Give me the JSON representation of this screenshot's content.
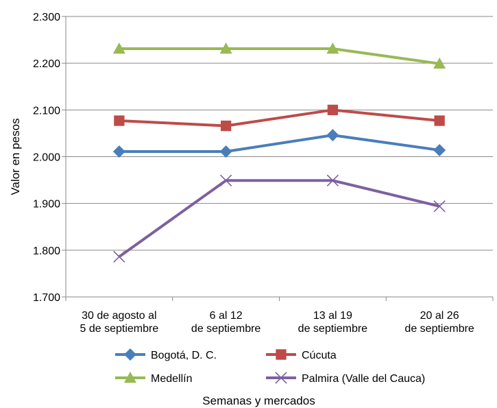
{
  "chart_data": {
    "type": "line",
    "title": "",
    "xlabel": "Semanas y mercados",
    "ylabel": "Valor en pesos",
    "categories": [
      [
        "30 de agosto al",
        "5 de septiembre"
      ],
      [
        "6 al 12",
        "de septiembre"
      ],
      [
        "13 al 19",
        "de septiembre"
      ],
      [
        "20 al 26",
        "de septiembre"
      ]
    ],
    "ylim": [
      1700,
      2300
    ],
    "yticks": [
      1700,
      1800,
      1900,
      2000,
      2100,
      2200,
      2300
    ],
    "ytick_labels": [
      "1.700",
      "1.800",
      "1.900",
      "2.000",
      "2.100",
      "2.200",
      "2.300"
    ],
    "grid": true,
    "legend_position": "bottom",
    "series": [
      {
        "name": "Bogotá, D. C.",
        "values": [
          2011,
          2011,
          2046,
          2014
        ],
        "color": "#4a7ebb",
        "marker": "diamond"
      },
      {
        "name": "Cúcuta",
        "values": [
          2077,
          2066,
          2100,
          2077
        ],
        "color": "#be4b48",
        "marker": "square"
      },
      {
        "name": "Medellín",
        "values": [
          2231,
          2231,
          2231,
          2199
        ],
        "color": "#98b954",
        "marker": "triangle"
      },
      {
        "name": "Palmira (Valle del Cauca)",
        "values": [
          1786,
          1949,
          1949,
          1894
        ],
        "color": "#7d60a0",
        "marker": "x"
      }
    ]
  }
}
